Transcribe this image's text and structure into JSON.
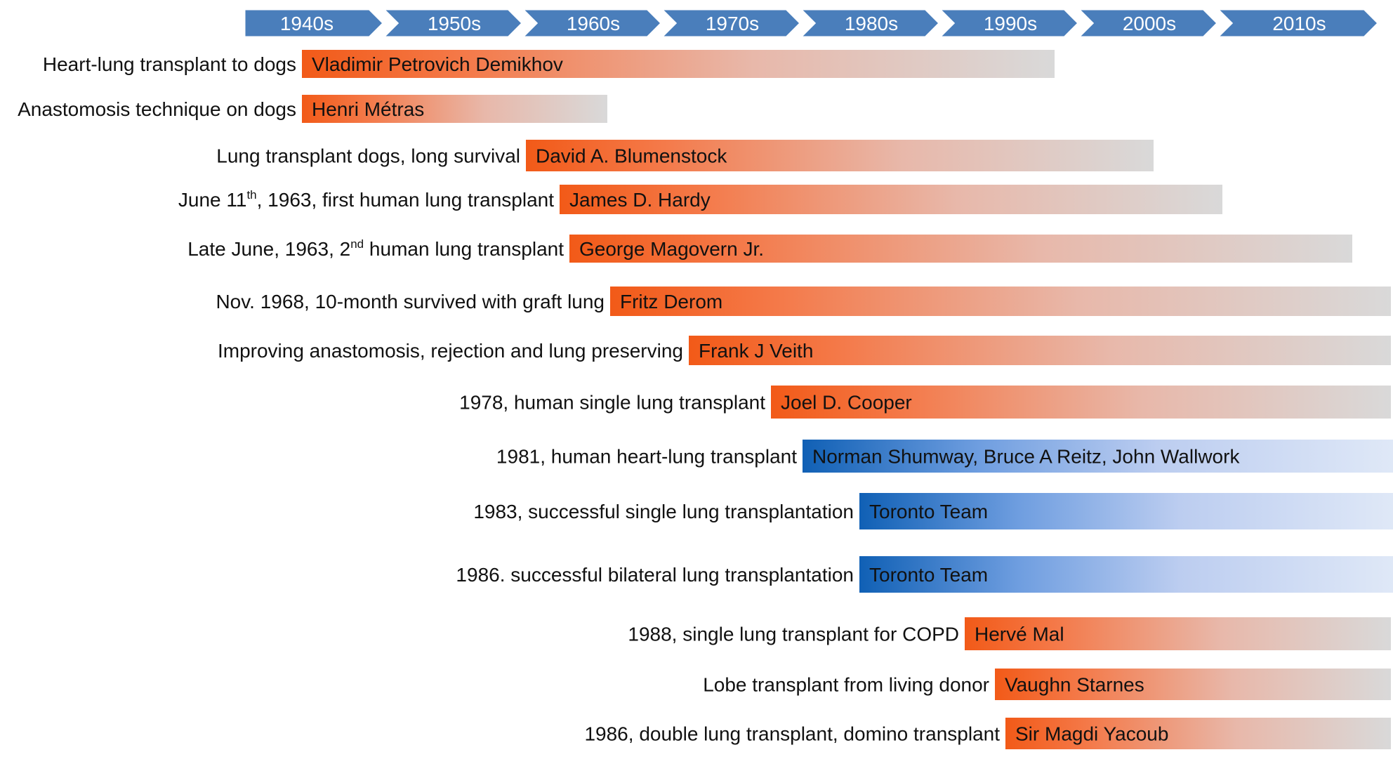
{
  "decades": [
    "1940s",
    "1950s",
    "1960s",
    "1970s",
    "1980s",
    "1990s",
    "2000s",
    "2010s"
  ],
  "colors": {
    "decade_bar": "#4a7ebb",
    "orange": "#f26322",
    "gray": "#d9d9d9",
    "blue": "#1565b8",
    "light_blue": "#dce6f5",
    "text": "#111111"
  },
  "rows": [
    {
      "label": "Heart-lung transplant to dogs",
      "name": "Vladimir Petrovich Demikhov",
      "scheme": "orange"
    },
    {
      "label": "Anastomosis technique on dogs",
      "name": "Henri Métras",
      "scheme": "orange"
    },
    {
      "label": "Lung transplant dogs, long survival",
      "name": "David A. Blumenstock",
      "scheme": "orange"
    },
    {
      "label_pre": "June 11",
      "label_sup": "th",
      "label_post": ", 1963, first human lung transplant",
      "name": "James D. Hardy",
      "scheme": "orange"
    },
    {
      "label_pre": "Late June, 1963, 2",
      "label_sup": "nd",
      "label_post": " human lung transplant",
      "name": "George Magovern Jr.",
      "scheme": "orange"
    },
    {
      "label": "Nov. 1968, 10-month survived with graft lung",
      "name": "Fritz Derom",
      "scheme": "orange"
    },
    {
      "label": "Improving anastomosis, rejection and lung preserving",
      "name": "Frank J Veith",
      "scheme": "orange"
    },
    {
      "label": "1978, human single lung transplant",
      "name": "Joel D. Cooper",
      "scheme": "orange"
    },
    {
      "label": "1981, human heart-lung transplant",
      "name": "Norman Shumway, Bruce A Reitz, John Wallwork",
      "scheme": "blue"
    },
    {
      "label": "1983, successful single lung transplantation",
      "name": "Toronto Team",
      "scheme": "blue"
    },
    {
      "label": "1986. successful bilateral lung transplantation",
      "name": "Toronto Team",
      "scheme": "blue"
    },
    {
      "label": "1988, single lung transplant for COPD",
      "name": "Hervé Mal",
      "scheme": "orange"
    },
    {
      "label": "Lobe transplant from living donor",
      "name": "Vaughn Starnes",
      "scheme": "orange"
    },
    {
      "label": "1986, double lung transplant, domino transplant",
      "name": "Sir Magdi Yacoub",
      "scheme": "orange"
    }
  ]
}
